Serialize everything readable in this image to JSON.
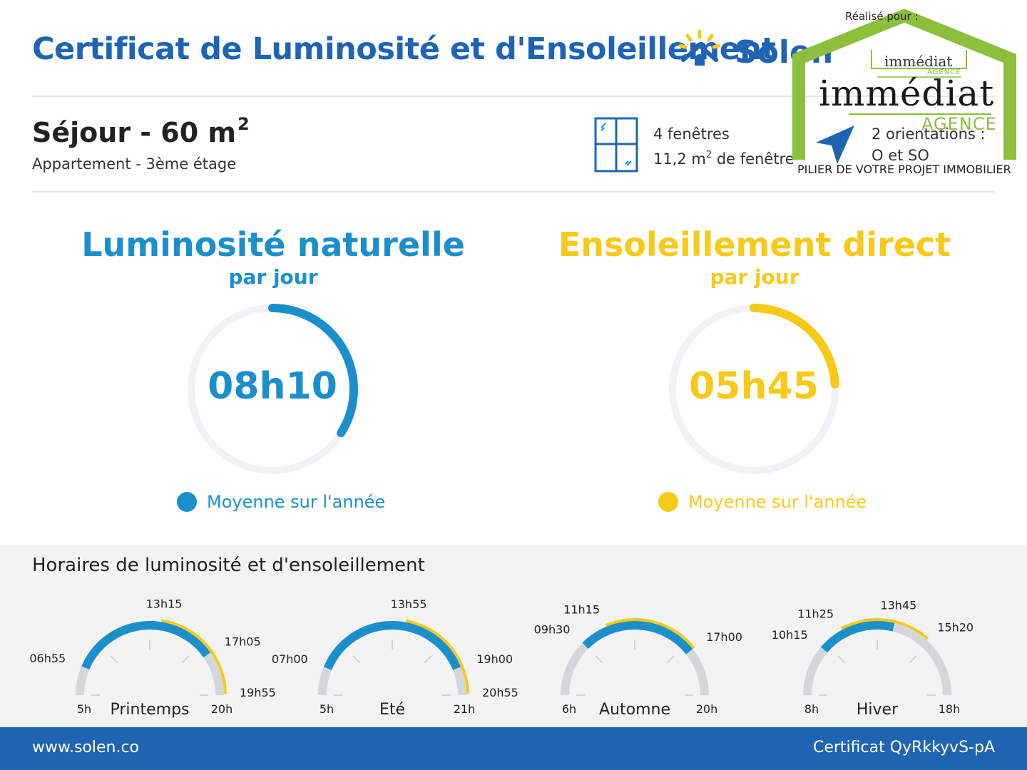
{
  "header": {
    "title": "Certificat de Luminosité et d'Ensoleillement",
    "brand": "Solen"
  },
  "room": {
    "title": "Séjour - 60 m",
    "title_sup": "2",
    "subtitle": "Appartement - 3ème étage",
    "windows_count": "4 fenêtres",
    "window_area_prefix": "11,2 m",
    "window_area_sup": "2",
    "window_area_suffix": " de fenêtre",
    "orientations_count": "2 orientations :",
    "orientations": "O et SO"
  },
  "luminosity": {
    "title": "Luminosité naturelle",
    "per_day": "par jour",
    "value": "08h10",
    "legend": "Moyenne sur l'année",
    "fraction": 0.34,
    "color": "#1a8fcb"
  },
  "sunshine": {
    "title": "Ensoleillement direct",
    "per_day": "par jour",
    "value": "05h45",
    "legend": "Moyenne sur l'année",
    "fraction": 0.24,
    "color": "#f7c919"
  },
  "schedule": {
    "title": "Horaires de luminosité et d'ensoleillement",
    "seasons": [
      {
        "name": "Printemps",
        "start": "5h",
        "end": "20h",
        "day_start": 5,
        "day_end": 20,
        "light_start": "06h55",
        "sun_start": "13h15",
        "light_end": "17h05",
        "sun_end": "19h55",
        "light_from": 6.92,
        "light_to": 17.08,
        "sun_from": 13.25,
        "sun_to": 19.92
      },
      {
        "name": "Eté",
        "start": "5h",
        "end": "21h",
        "day_start": 5,
        "day_end": 21,
        "light_start": "07h00",
        "sun_start": "13h55",
        "light_end": "19h00",
        "sun_end": "20h55",
        "light_from": 7.0,
        "light_to": 19.0,
        "sun_from": 13.92,
        "sun_to": 20.92
      },
      {
        "name": "Automne",
        "start": "6h",
        "end": "20h",
        "day_start": 6,
        "day_end": 20,
        "light_start": "09h30",
        "sun_start": "11h15",
        "light_end": "17h00",
        "sun_end": "",
        "light_from": 9.5,
        "light_to": 17.0,
        "sun_from": 11.25,
        "sun_to": 17.0
      },
      {
        "name": "Hiver",
        "start": "8h",
        "end": "18h",
        "day_start": 8,
        "day_end": 18,
        "light_start": "10h15",
        "sun_start": "11h25",
        "light_end": "13h45",
        "sun_end": "15h20",
        "light_from": 10.25,
        "light_to": 13.75,
        "sun_from": 11.42,
        "sun_to": 15.33
      }
    ]
  },
  "footer": {
    "url": "www.solen.co",
    "certificate": "Certificat QyRkkyvS-pA"
  },
  "badge": {
    "realise_pour": "Réalisé pour :",
    "brand_small": "immédiat",
    "brand_small_sub": "AGENCE",
    "brand_big": "immédiat",
    "brand_agence": "AGENCE",
    "tagline": "PILIER DE VOTRE PROJET IMMOBILIER"
  },
  "colors": {
    "blue": "#1a8fcb",
    "yellow": "#f7c919",
    "navy": "#1f64b3",
    "track": "#f1f2f5",
    "green": "#8bbf3c"
  }
}
